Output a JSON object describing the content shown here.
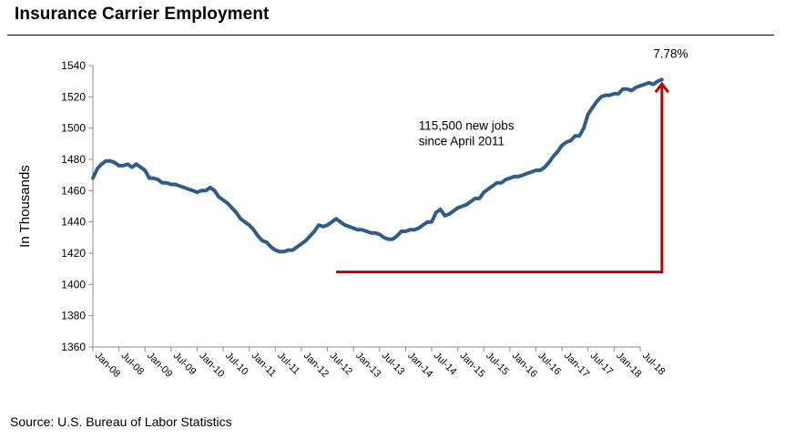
{
  "header": {
    "title": "Insurance Carrier Employment"
  },
  "footer": {
    "source": "Source: U.S. Bureau of Labor Statistics"
  },
  "chart_data": {
    "type": "line",
    "title": "Insurance Carrier Employment",
    "xlabel": "",
    "ylabel": "In Thousands",
    "ylim": [
      1360,
      1540
    ],
    "yticks": [
      1360,
      1380,
      1400,
      1420,
      1440,
      1460,
      1480,
      1500,
      1520,
      1540
    ],
    "x_start": "Jan-08",
    "x_end": "Jul-18",
    "categories": [
      "Jan-08",
      "Jul-08",
      "Jan-09",
      "Jul-09",
      "Jan-10",
      "Jul-10",
      "Jan-11",
      "Jul-11",
      "Jan-12",
      "Jul-12",
      "Jan-13",
      "Jul-13",
      "Jan-14",
      "Jul-14",
      "Jan-15",
      "Jul-15",
      "Jan-16",
      "Jul-16",
      "Jan-17",
      "Jul-17",
      "Jan-18",
      "Jul-18"
    ],
    "series": [
      {
        "name": "Insurance Carrier Employment",
        "color": "#2f5d88",
        "points": [
          [
            0,
            1468
          ],
          [
            1,
            1474
          ],
          [
            2,
            1477
          ],
          [
            3,
            1479
          ],
          [
            4,
            1479
          ],
          [
            5,
            1478
          ],
          [
            6,
            1476
          ],
          [
            7,
            1476
          ],
          [
            8,
            1477
          ],
          [
            9,
            1475
          ],
          [
            10,
            1477
          ],
          [
            11,
            1475
          ],
          [
            12,
            1473
          ],
          [
            13,
            1468
          ],
          [
            14,
            1468
          ],
          [
            15,
            1467
          ],
          [
            16,
            1465
          ],
          [
            17,
            1465
          ],
          [
            18,
            1464
          ],
          [
            19,
            1464
          ],
          [
            20,
            1463
          ],
          [
            21,
            1462
          ],
          [
            22,
            1461
          ],
          [
            23,
            1460
          ],
          [
            24,
            1459
          ],
          [
            25,
            1460
          ],
          [
            26,
            1460
          ],
          [
            27,
            1462
          ],
          [
            28,
            1460
          ],
          [
            29,
            1456
          ],
          [
            30,
            1454
          ],
          [
            31,
            1452
          ],
          [
            32,
            1449
          ],
          [
            33,
            1446
          ],
          [
            34,
            1442
          ],
          [
            35,
            1440
          ],
          [
            36,
            1438
          ],
          [
            37,
            1435
          ],
          [
            38,
            1431
          ],
          [
            39,
            1428
          ],
          [
            40,
            1427
          ],
          [
            41,
            1424
          ],
          [
            42,
            1422
          ],
          [
            43,
            1421
          ],
          [
            44,
            1421
          ],
          [
            45,
            1422
          ],
          [
            46,
            1422
          ],
          [
            47,
            1424
          ],
          [
            48,
            1426
          ],
          [
            49,
            1428
          ],
          [
            50,
            1431
          ],
          [
            51,
            1434
          ],
          [
            52,
            1438
          ],
          [
            53,
            1437
          ],
          [
            54,
            1438
          ],
          [
            55,
            1440
          ],
          [
            56,
            1442
          ],
          [
            57,
            1440
          ],
          [
            58,
            1438
          ],
          [
            59,
            1437
          ],
          [
            60,
            1436
          ],
          [
            61,
            1435
          ],
          [
            62,
            1435
          ],
          [
            63,
            1434
          ],
          [
            64,
            1433
          ],
          [
            65,
            1433
          ],
          [
            66,
            1432
          ],
          [
            67,
            1430
          ],
          [
            68,
            1429
          ],
          [
            69,
            1429
          ],
          [
            70,
            1431
          ],
          [
            71,
            1434
          ],
          [
            72,
            1434
          ],
          [
            73,
            1435
          ],
          [
            74,
            1435
          ],
          [
            75,
            1436
          ],
          [
            76,
            1438
          ],
          [
            77,
            1440
          ],
          [
            78,
            1440
          ],
          [
            79,
            1446
          ],
          [
            80,
            1448
          ],
          [
            81,
            1444
          ],
          [
            82,
            1445
          ],
          [
            83,
            1447
          ],
          [
            84,
            1449
          ],
          [
            85,
            1450
          ],
          [
            86,
            1451
          ],
          [
            87,
            1453
          ],
          [
            88,
            1455
          ],
          [
            89,
            1455
          ],
          [
            90,
            1459
          ],
          [
            91,
            1461
          ],
          [
            92,
            1463
          ],
          [
            93,
            1465
          ],
          [
            94,
            1465
          ],
          [
            95,
            1467
          ],
          [
            96,
            1468
          ],
          [
            97,
            1469
          ],
          [
            98,
            1469
          ],
          [
            99,
            1470
          ],
          [
            100,
            1471
          ],
          [
            101,
            1472
          ],
          [
            102,
            1473
          ],
          [
            103,
            1473
          ],
          [
            104,
            1475
          ],
          [
            105,
            1478
          ],
          [
            106,
            1482
          ],
          [
            107,
            1485
          ],
          [
            108,
            1489
          ],
          [
            109,
            1491
          ],
          [
            110,
            1492
          ],
          [
            111,
            1495
          ],
          [
            112,
            1495
          ],
          [
            113,
            1500
          ],
          [
            114,
            1509
          ],
          [
            115,
            1513
          ],
          [
            116,
            1517
          ],
          [
            117,
            1520
          ],
          [
            118,
            1521
          ],
          [
            119,
            1521
          ],
          [
            120,
            1522
          ],
          [
            121,
            1522
          ],
          [
            122,
            1525
          ],
          [
            123,
            1525
          ],
          [
            124,
            1524
          ],
          [
            125,
            1526
          ],
          [
            126,
            1527
          ],
          [
            127,
            1528
          ],
          [
            128,
            1529
          ],
          [
            129,
            1528
          ],
          [
            130,
            1530
          ],
          [
            131,
            1531
          ]
        ]
      }
    ],
    "annotations": [
      {
        "text": "115,500 new jobs",
        "x_month": 75,
        "y": 1499
      },
      {
        "text": "since April 2011",
        "x_month": 75,
        "y": 1489
      },
      {
        "text": "7.78%",
        "x_month": 133,
        "y": 1545
      }
    ],
    "arrow": {
      "color": "#c00000",
      "baseline_value": 1408,
      "start_month": 56,
      "end_month": 131,
      "target_value": 1530
    }
  }
}
